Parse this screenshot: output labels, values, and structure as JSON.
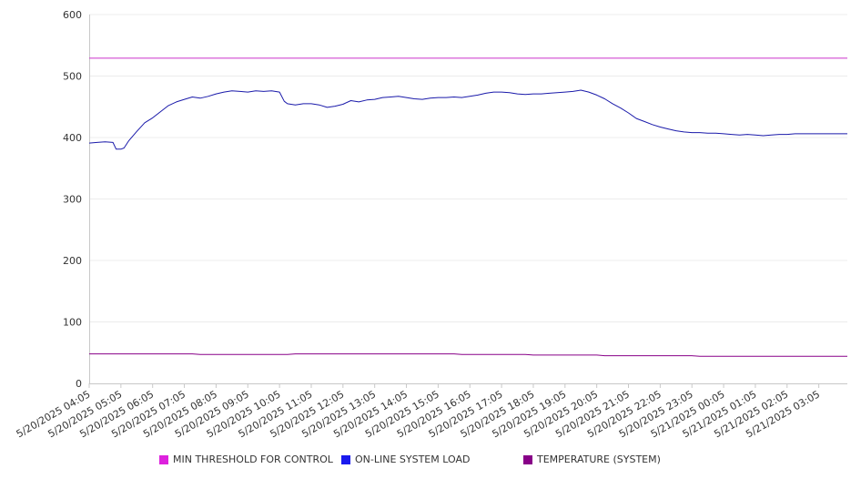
{
  "chart_data": {
    "type": "line",
    "title": "",
    "xlabel": "",
    "ylabel": "",
    "ylim": [
      0,
      600
    ],
    "yticks": [
      "0",
      "100",
      "200",
      "300",
      "400",
      "500",
      "600"
    ],
    "xticks": [
      "5/20/2025 04:05",
      "5/20/2025 05:05",
      "5/20/2025 06:05",
      "5/20/2025 07:05",
      "5/20/2025 08:05",
      "5/20/2025 09:05",
      "5/20/2025 10:05",
      "5/20/2025 11:05",
      "5/20/2025 12:05",
      "5/20/2025 13:05",
      "5/20/2025 14:05",
      "5/20/2025 15:05",
      "5/20/2025 16:05",
      "5/20/2025 17:05",
      "5/20/2025 18:05",
      "5/20/2025 19:05",
      "5/20/2025 20:05",
      "5/20/2025 21:05",
      "5/20/2025 22:05",
      "5/20/2025 23:05",
      "5/21/2025 00:05",
      "5/21/2025 01:05",
      "5/21/2025 02:05",
      "5/21/2025 03:05"
    ],
    "x_hours": [
      0,
      0.25,
      0.5,
      0.75,
      0.85,
      1.0,
      1.1,
      1.25,
      1.5,
      1.75,
      2.0,
      2.25,
      2.5,
      2.75,
      3.0,
      3.25,
      3.5,
      3.75,
      4.0,
      4.25,
      4.5,
      4.75,
      5.0,
      5.25,
      5.5,
      5.75,
      6.0,
      6.15,
      6.25,
      6.5,
      6.75,
      7.0,
      7.25,
      7.5,
      7.75,
      8.0,
      8.25,
      8.5,
      8.75,
      9.0,
      9.25,
      9.5,
      9.75,
      10.0,
      10.25,
      10.5,
      10.75,
      11.0,
      11.25,
      11.5,
      11.75,
      12.0,
      12.25,
      12.5,
      12.75,
      13.0,
      13.25,
      13.5,
      13.75,
      14.0,
      14.25,
      14.5,
      14.75,
      15.0,
      15.25,
      15.5,
      15.75,
      16.0,
      16.25,
      16.5,
      16.75,
      17.0,
      17.25,
      17.5,
      17.75,
      18.0,
      18.25,
      18.5,
      18.75,
      19.0,
      19.25,
      19.5,
      19.75,
      20.0,
      20.25,
      20.5,
      20.75,
      21.0,
      21.25,
      21.5,
      21.75,
      22.0,
      22.25,
      22.5,
      22.75,
      23.0,
      23.25,
      23.5,
      23.75,
      23.9
    ],
    "series": [
      {
        "name": "MIN THRESHOLD FOR CONTROL",
        "color": "#cc33cc",
        "values": [
          529,
          529,
          529,
          529,
          529,
          529,
          529,
          529,
          529,
          529,
          529,
          529,
          529,
          529,
          529,
          529,
          529,
          529,
          529,
          529,
          529,
          529,
          529,
          529,
          529,
          529,
          529,
          529,
          529,
          529,
          529,
          529,
          529,
          529,
          529,
          529,
          529,
          529,
          529,
          529,
          529,
          529,
          529,
          529,
          529,
          529,
          529,
          529,
          529,
          529,
          529,
          529,
          529,
          529,
          529,
          529,
          529,
          529,
          529,
          529,
          529,
          529,
          529,
          529,
          529,
          529,
          529,
          529,
          529,
          529,
          529,
          529,
          529,
          529,
          529,
          529,
          529,
          529,
          529,
          529,
          529,
          529,
          529,
          529,
          529,
          529,
          529,
          529,
          529,
          529,
          529,
          529,
          529,
          529,
          529,
          529,
          529,
          529,
          529,
          529
        ]
      },
      {
        "name": "ON-LINE SYSTEM LOAD",
        "color": "#1a1aaa",
        "values": [
          391,
          392,
          393,
          392,
          381,
          381,
          383,
          395,
          410,
          424,
          432,
          442,
          452,
          458,
          462,
          466,
          464,
          467,
          471,
          474,
          476,
          475,
          474,
          476,
          475,
          476,
          474,
          459,
          455,
          453,
          455,
          455,
          453,
          449,
          451,
          454,
          460,
          458,
          461,
          462,
          465,
          466,
          467,
          465,
          463,
          462,
          464,
          465,
          465,
          466,
          465,
          467,
          469,
          472,
          474,
          474,
          473,
          471,
          470,
          471,
          471,
          472,
          473,
          474,
          475,
          477,
          474,
          469,
          463,
          455,
          448,
          440,
          431,
          426,
          421,
          417,
          414,
          411,
          409,
          408,
          408,
          407,
          407,
          406,
          405,
          404,
          405,
          404,
          403,
          404,
          405,
          405,
          406,
          406,
          406,
          406,
          406,
          406,
          406,
          406
        ]
      },
      {
        "name": "TEMPERATURE (SYSTEM)",
        "color": "#880088",
        "values": [
          48,
          48,
          48,
          48,
          48,
          48,
          48,
          48,
          48,
          48,
          48,
          48,
          48,
          48,
          48,
          48,
          47,
          47,
          47,
          47,
          47,
          47,
          47,
          47,
          47,
          47,
          47,
          47,
          47,
          48,
          48,
          48,
          48,
          48,
          48,
          48,
          48,
          48,
          48,
          48,
          48,
          48,
          48,
          48,
          48,
          48,
          48,
          48,
          48,
          48,
          47,
          47,
          47,
          47,
          47,
          47,
          47,
          47,
          47,
          46,
          46,
          46,
          46,
          46,
          46,
          46,
          46,
          46,
          45,
          45,
          45,
          45,
          45,
          45,
          45,
          45,
          45,
          45,
          45,
          45,
          44,
          44,
          44,
          44,
          44,
          44,
          44,
          44,
          44,
          44,
          44,
          44,
          44,
          44,
          44,
          44,
          44,
          44,
          44,
          44
        ]
      }
    ],
    "legend": {
      "position": "bottom",
      "entries": [
        "MIN THRESHOLD FOR CONTROL",
        "ON-LINE SYSTEM LOAD",
        "TEMPERATURE (SYSTEM)"
      ],
      "colors": [
        "#dd22dd",
        "#1a1aee",
        "#880088"
      ]
    },
    "grid": true
  }
}
